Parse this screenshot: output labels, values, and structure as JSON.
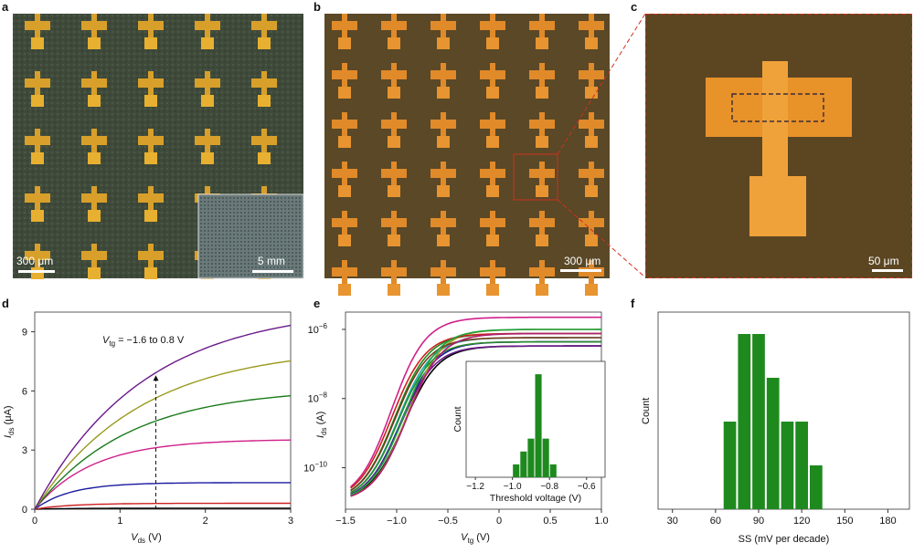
{
  "panels": {
    "a": "a",
    "b": "b",
    "c": "c",
    "d": "d",
    "e": "e",
    "f": "f"
  },
  "micro": {
    "a_scale": "300 μm",
    "a_inset_scale": "5 mm",
    "b_scale": "300 μm",
    "c_scale": "50 μm"
  },
  "chart_data": [
    {
      "id": "d",
      "type": "line",
      "xlabel": "V",
      "xlabel_sub": "ds",
      "xlabel_unit": " (V)",
      "ylabel": "I",
      "ylabel_sub": "ds",
      "ylabel_unit": " (μA)",
      "xlim": [
        0,
        3
      ],
      "ylim": [
        0,
        10
      ],
      "xticks": [
        0,
        1,
        2,
        3
      ],
      "yticks": [
        0,
        3,
        6,
        9
      ],
      "annotation": {
        "prefix": "V",
        "sub": "tg",
        "text": " = −1.6 to 0.8 V"
      },
      "series": [
        {
          "color": "#000000",
          "sat": 0.05,
          "k": 1.5
        },
        {
          "color": "#cc2020",
          "sat": 0.3,
          "k": 1.5
        },
        {
          "color": "#1a1aa0",
          "sat": 1.35,
          "k": 1.5
        },
        {
          "color": "#d0208a",
          "sat": 3.55,
          "k": 1.5
        },
        {
          "color": "#1a7a1a",
          "sat": 6.15,
          "k": 1.6
        },
        {
          "color": "#9a9a20",
          "sat": 8.25,
          "k": 1.9
        },
        {
          "color": "#6a1a8a",
          "sat": 10.3,
          "k": 2.3
        }
      ]
    },
    {
      "id": "e",
      "type": "line",
      "yscale": "log",
      "xlabel": "V",
      "xlabel_sub": "tg",
      "xlabel_unit": " (V)",
      "ylabel": "I",
      "ylabel_sub": "ds",
      "ylabel_unit": " (A)",
      "xlim": [
        -1.5,
        1.0
      ],
      "xticks": [
        "−1.5",
        "−1.0",
        "−0.5",
        "0",
        "0.5",
        "1.0"
      ],
      "yticks": [
        "10",
        "10",
        "10"
      ],
      "ytick_exps": [
        "−6",
        "−8",
        "−10"
      ],
      "series_colors": [
        "#d0208a",
        "#1a8a1a",
        "#20b0b0",
        "#1a1aa0",
        "#000000",
        "#9a9a20",
        "#cc2020",
        "#7a3a1a",
        "#2a8a2a",
        "#6a1a8a",
        "#20a040",
        "#b02070"
      ],
      "inset": {
        "type": "bar",
        "xlabel": "Threshold voltage (V)",
        "ylabel": "Count",
        "xticks": [
          "−1.2",
          "−1.0",
          "−0.8",
          "−0.6"
        ],
        "bins": [
          -0.98,
          -0.94,
          -0.9,
          -0.86,
          -0.82,
          -0.78,
          -0.74
        ],
        "values": [
          1,
          2,
          3,
          8,
          3,
          1,
          0
        ]
      }
    },
    {
      "id": "f",
      "type": "bar",
      "xlabel": "SS (mV per decade)",
      "ylabel": "Count",
      "xticks": [
        "30",
        "60",
        "90",
        "120",
        "150",
        "180"
      ],
      "bins": [
        70,
        80,
        90,
        100,
        110,
        120,
        130,
        140
      ],
      "values": [
        4,
        8,
        8,
        6,
        4,
        4,
        2,
        0
      ]
    }
  ]
}
